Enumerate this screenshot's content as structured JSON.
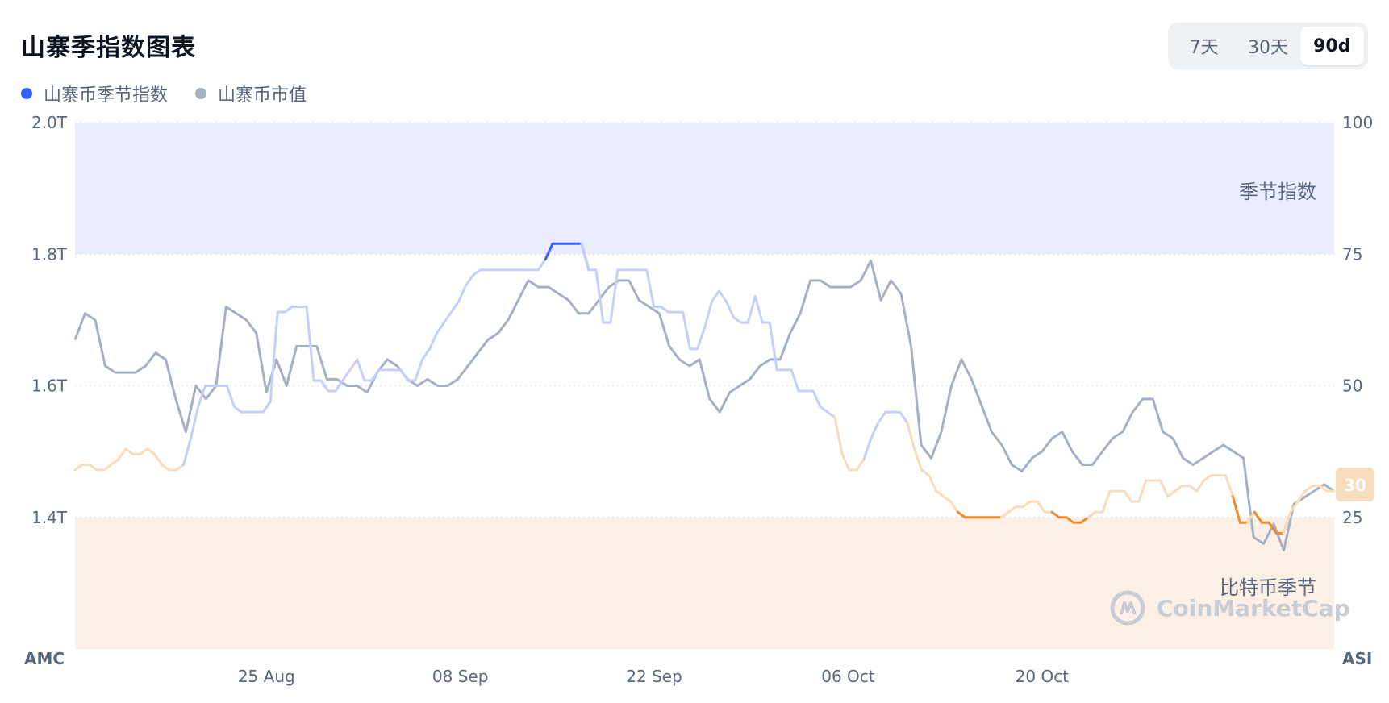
{
  "title": "山寨季指数图表",
  "legend": [
    {
      "label": "山寨币季节指数",
      "color": "#3861fb"
    },
    {
      "label": "山寨币市值",
      "color": "#a6b0c3"
    }
  ],
  "range_buttons": [
    {
      "label": "7天",
      "active": false
    },
    {
      "label": "30天",
      "active": false
    },
    {
      "label": "90d",
      "active": true
    }
  ],
  "zones": {
    "altcoin_label": "季节指数",
    "bitcoin_label": "比特币季节",
    "altcoin_color": "#eaedfd",
    "bitcoin_color": "#fcf0e6"
  },
  "watermark": "CoinMarketCap",
  "current_badge": "30",
  "colors": {
    "altcoin_season": "#3861fb",
    "neutral_light_blue": "#c5cffa",
    "neutral_light_orange": "#f7dcbd",
    "bitcoin_season": "#f08c2d",
    "market_cap": "#a6b0c3"
  },
  "chart_data": {
    "type": "line",
    "x_ticks": [
      "25 Aug",
      "08 Sep",
      "22 Sep",
      "06 Oct",
      "20 Oct"
    ],
    "y_left": {
      "label": "AMC",
      "ticks": [
        "1.4T",
        "1.6T",
        "1.8T",
        "2.0T"
      ],
      "ylim": [
        1.2,
        2.0
      ]
    },
    "y_right": {
      "label": "ASI",
      "ticks": [
        "25",
        "50",
        "75",
        "100"
      ],
      "ylim": [
        0,
        100
      ]
    },
    "altcoin_season_threshold": 75,
    "bitcoin_season_threshold": 25,
    "series": [
      {
        "name": "山寨币季节指数",
        "axis": "right",
        "values": [
          34,
          35,
          35,
          34,
          34,
          35,
          36,
          38,
          37,
          37,
          38,
          37,
          35,
          34,
          34,
          35,
          40,
          46,
          50,
          50,
          50,
          50,
          46,
          45,
          45,
          45,
          45,
          47,
          64,
          64,
          65,
          65,
          65,
          51,
          51,
          49,
          49,
          51,
          53,
          55,
          51,
          51,
          53,
          53,
          53,
          53,
          51,
          51,
          55,
          57,
          60,
          62,
          64,
          66,
          69,
          71,
          72,
          72,
          72,
          72,
          72,
          72,
          72,
          72,
          72,
          74,
          77,
          77,
          77,
          77,
          77,
          72,
          72,
          62,
          62,
          72,
          72,
          72,
          72,
          72,
          65,
          65,
          64,
          64,
          64,
          57,
          57,
          61,
          66,
          68,
          66,
          63,
          62,
          62,
          67,
          62,
          62,
          53,
          53,
          53,
          49,
          49,
          49,
          46,
          45,
          44,
          37,
          34,
          34,
          36,
          40,
          43,
          45,
          45,
          45,
          43,
          38,
          34,
          33,
          30,
          29,
          28,
          26,
          25,
          25,
          25,
          25,
          25,
          25,
          26,
          27,
          27,
          28,
          28,
          26,
          26,
          25,
          25,
          24,
          24,
          25,
          26,
          26,
          30,
          30,
          30,
          28,
          28,
          32,
          32,
          32,
          29,
          30,
          31,
          31,
          30,
          32,
          33,
          33,
          33,
          29,
          24,
          24,
          26,
          24,
          24,
          22,
          22,
          26,
          28,
          30,
          31,
          31,
          30,
          30
        ],
        "color_rule": "blue above 75, orange below 25, faded otherwise"
      },
      {
        "name": "山寨币市值",
        "axis": "left",
        "values": [
          1.67,
          1.71,
          1.7,
          1.63,
          1.62,
          1.62,
          1.62,
          1.63,
          1.65,
          1.64,
          1.58,
          1.53,
          1.6,
          1.58,
          1.6,
          1.72,
          1.71,
          1.7,
          1.68,
          1.59,
          1.64,
          1.6,
          1.66,
          1.66,
          1.66,
          1.61,
          1.61,
          1.6,
          1.6,
          1.59,
          1.62,
          1.64,
          1.63,
          1.61,
          1.6,
          1.61,
          1.6,
          1.6,
          1.61,
          1.63,
          1.65,
          1.67,
          1.68,
          1.7,
          1.73,
          1.76,
          1.75,
          1.75,
          1.74,
          1.73,
          1.71,
          1.71,
          1.73,
          1.75,
          1.76,
          1.76,
          1.73,
          1.72,
          1.71,
          1.66,
          1.64,
          1.63,
          1.64,
          1.58,
          1.56,
          1.59,
          1.6,
          1.61,
          1.63,
          1.64,
          1.64,
          1.68,
          1.71,
          1.76,
          1.76,
          1.75,
          1.75,
          1.75,
          1.76,
          1.79,
          1.73,
          1.76,
          1.74,
          1.66,
          1.51,
          1.49,
          1.53,
          1.6,
          1.64,
          1.61,
          1.57,
          1.53,
          1.51,
          1.48,
          1.47,
          1.49,
          1.5,
          1.52,
          1.53,
          1.5,
          1.48,
          1.48,
          1.5,
          1.52,
          1.53,
          1.56,
          1.58,
          1.58,
          1.53,
          1.52,
          1.49,
          1.48,
          1.49,
          1.5,
          1.51,
          1.5,
          1.49,
          1.37,
          1.36,
          1.39,
          1.35,
          1.42,
          1.43,
          1.44,
          1.45,
          1.44
        ]
      }
    ]
  }
}
